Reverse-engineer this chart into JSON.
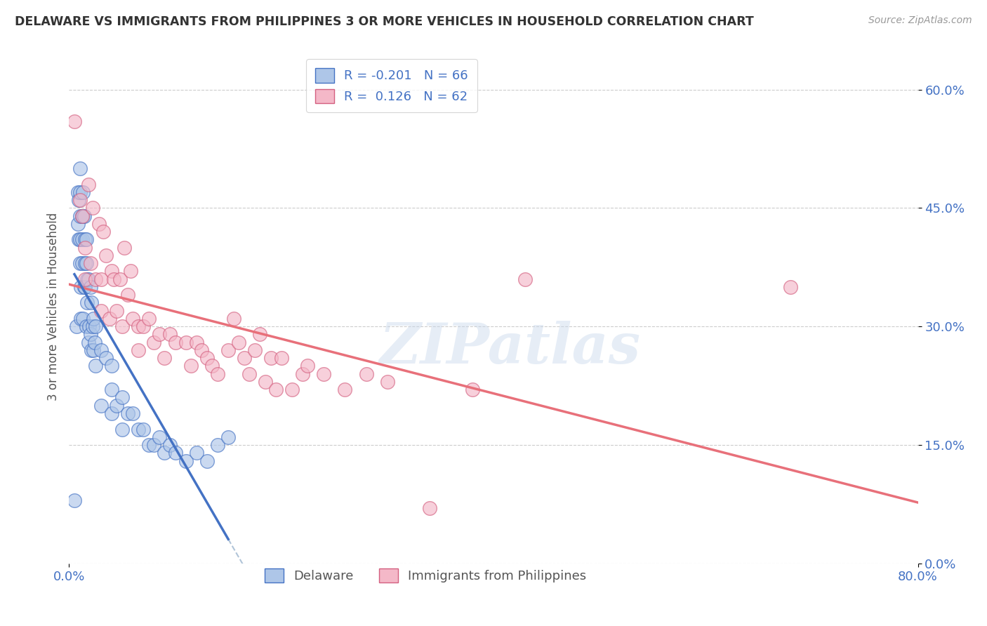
{
  "title": "DELAWARE VS IMMIGRANTS FROM PHILIPPINES 3 OR MORE VEHICLES IN HOUSEHOLD CORRELATION CHART",
  "source": "Source: ZipAtlas.com",
  "ylabel": "3 or more Vehicles in Household",
  "xlim": [
    0.0,
    0.8
  ],
  "ylim": [
    0.0,
    0.65
  ],
  "ytick_labels": [
    "0.0%",
    "15.0%",
    "30.0%",
    "45.0%",
    "60.0%"
  ],
  "ytick_values": [
    0.0,
    0.15,
    0.3,
    0.45,
    0.6
  ],
  "xtick_labels": [
    "0.0%",
    "80.0%"
  ],
  "xtick_values": [
    0.0,
    0.8
  ],
  "color_blue": "#aec6e8",
  "color_pink": "#f4b8c8",
  "line_blue": "#4472c4",
  "line_pink": "#e8707a",
  "line_gray": "#b0c4d8",
  "watermark": "ZIPatlas",
  "legend_r1": "R = -0.201",
  "legend_n1": "N = 66",
  "legend_r2": "R =  0.126",
  "legend_n2": "N = 62",
  "del_x": [
    0.005,
    0.007,
    0.008,
    0.008,
    0.009,
    0.009,
    0.01,
    0.01,
    0.01,
    0.01,
    0.01,
    0.011,
    0.011,
    0.012,
    0.012,
    0.012,
    0.013,
    0.013,
    0.013,
    0.014,
    0.014,
    0.015,
    0.015,
    0.015,
    0.016,
    0.016,
    0.016,
    0.017,
    0.017,
    0.018,
    0.018,
    0.019,
    0.02,
    0.02,
    0.021,
    0.021,
    0.022,
    0.023,
    0.023,
    0.024,
    0.025,
    0.025,
    0.03,
    0.03,
    0.035,
    0.04,
    0.04,
    0.04,
    0.045,
    0.05,
    0.05,
    0.055,
    0.06,
    0.065,
    0.07,
    0.075,
    0.08,
    0.085,
    0.09,
    0.095,
    0.1,
    0.11,
    0.12,
    0.13,
    0.14,
    0.15
  ],
  "del_y": [
    0.08,
    0.3,
    0.47,
    0.43,
    0.46,
    0.41,
    0.5,
    0.47,
    0.44,
    0.41,
    0.38,
    0.35,
    0.31,
    0.44,
    0.41,
    0.38,
    0.47,
    0.44,
    0.31,
    0.44,
    0.35,
    0.41,
    0.38,
    0.35,
    0.41,
    0.38,
    0.3,
    0.36,
    0.33,
    0.36,
    0.28,
    0.3,
    0.35,
    0.29,
    0.33,
    0.27,
    0.3,
    0.31,
    0.27,
    0.28,
    0.3,
    0.25,
    0.27,
    0.2,
    0.26,
    0.25,
    0.22,
    0.19,
    0.2,
    0.21,
    0.17,
    0.19,
    0.19,
    0.17,
    0.17,
    0.15,
    0.15,
    0.16,
    0.14,
    0.15,
    0.14,
    0.13,
    0.14,
    0.13,
    0.15,
    0.16
  ],
  "phi_x": [
    0.005,
    0.01,
    0.012,
    0.015,
    0.015,
    0.018,
    0.02,
    0.022,
    0.025,
    0.028,
    0.03,
    0.03,
    0.032,
    0.035,
    0.038,
    0.04,
    0.042,
    0.045,
    0.048,
    0.05,
    0.052,
    0.055,
    0.058,
    0.06,
    0.065,
    0.065,
    0.07,
    0.075,
    0.08,
    0.085,
    0.09,
    0.095,
    0.1,
    0.11,
    0.115,
    0.12,
    0.125,
    0.13,
    0.135,
    0.14,
    0.15,
    0.155,
    0.16,
    0.165,
    0.17,
    0.175,
    0.18,
    0.185,
    0.19,
    0.195,
    0.2,
    0.21,
    0.22,
    0.225,
    0.24,
    0.26,
    0.28,
    0.3,
    0.34,
    0.38,
    0.43,
    0.68
  ],
  "phi_y": [
    0.56,
    0.46,
    0.44,
    0.4,
    0.36,
    0.48,
    0.38,
    0.45,
    0.36,
    0.43,
    0.36,
    0.32,
    0.42,
    0.39,
    0.31,
    0.37,
    0.36,
    0.32,
    0.36,
    0.3,
    0.4,
    0.34,
    0.37,
    0.31,
    0.3,
    0.27,
    0.3,
    0.31,
    0.28,
    0.29,
    0.26,
    0.29,
    0.28,
    0.28,
    0.25,
    0.28,
    0.27,
    0.26,
    0.25,
    0.24,
    0.27,
    0.31,
    0.28,
    0.26,
    0.24,
    0.27,
    0.29,
    0.23,
    0.26,
    0.22,
    0.26,
    0.22,
    0.24,
    0.25,
    0.24,
    0.22,
    0.24,
    0.23,
    0.07,
    0.22,
    0.36,
    0.35
  ]
}
